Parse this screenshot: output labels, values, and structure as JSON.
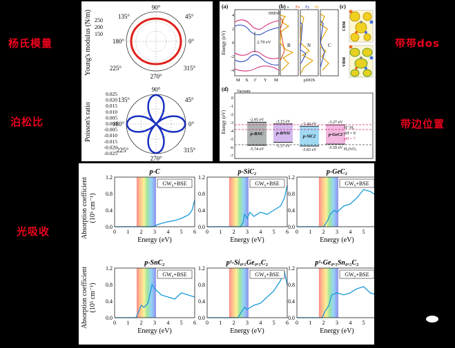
{
  "labels": {
    "young": "杨氏模量",
    "poisson": "泊松比",
    "bandgap": "带带dos",
    "bandedge": "带边位置",
    "absorption": "光吸收"
  },
  "polar": {
    "young": {
      "ylabel": "Young's modulus (N/m)",
      "ticks": [
        "250",
        "200",
        "150"
      ],
      "angles": [
        "90°",
        "45°",
        "0°",
        "315°",
        "270°",
        "225°",
        "180°",
        "135°"
      ]
    },
    "poisson": {
      "ylabel": "Poisson's ratio",
      "ticks": [
        "0.025",
        "0.020",
        "0.015",
        "0.010",
        "0.005",
        "0.000",
        "-0.005",
        "-0.010",
        "-0.015",
        "-0.020",
        "-0.025"
      ],
      "angles": [
        "90°",
        "45°",
        "0°",
        "315°",
        "270°",
        "225°",
        "180°",
        "135°"
      ]
    }
  },
  "band": {
    "panel_a": "(a)",
    "panel_b": "(b)",
    "panel_c": "(c)",
    "panel_d": "(d)",
    "ylabel": "Energy (eV)",
    "hse": "HSE06",
    "gap": "2.79 eV",
    "kpoints": [
      "M",
      "X",
      "Γ",
      "Y",
      "M"
    ],
    "ticks": [
      "4",
      "2",
      "0",
      "-2",
      "-4"
    ],
    "legend": [
      "s",
      "Px",
      "Py",
      "Pz"
    ],
    "pdos": "pDOS",
    "elements": [
      "B",
      "N",
      "C"
    ],
    "cbm": "CBM",
    "vbm": "VBM"
  },
  "edges": {
    "ylabel": "Energy (eV)",
    "vacuum": "Vacuum",
    "ticks": [
      "0",
      "-1",
      "-2",
      "-3",
      "-4",
      "-5",
      "-6",
      "-7"
    ],
    "materials": [
      {
        "name": "p-BNC",
        "cb": "-2.95 eV",
        "vb": "-5.74 eV"
      },
      {
        "name": "p-BNSi",
        "cb": "-3.15 eV",
        "vb": "-5.37 eV"
      },
      {
        "name": "p-SiC2",
        "cb": "-3.44 eV",
        "vb": "-5.83 eV"
      },
      {
        "name": "p-GeC2",
        "cb": "-3.27 eV",
        "vb": "-5.59 eV"
      }
    ],
    "h_label": "H⁺/H₂",
    "ph0": "pH = 0",
    "ph7": "pH = 7",
    "o_label": "H₂O/O₂"
  },
  "absorption": {
    "ylabel1": "Absorption coefficient",
    "ylabel2": "(10⁵ cm⁻¹)",
    "xlabel": "Energy (eV)",
    "legend": "GW₀+BSE",
    "yticks": [
      "1.2",
      "0.8",
      "0.4",
      "0.0"
    ],
    "xticks": [
      "0",
      "1",
      "2",
      "3",
      "4",
      "5",
      "6"
    ],
    "titles": [
      "p-C",
      "p-SiC₂",
      "p-GeC₂",
      "p-SnC₂",
      "p¹-Si₀.₅Ge₀.₅C₂",
      "p¹-Ge₀.₅Sn₀.₅C₂"
    ]
  },
  "chart_data": [
    {
      "type": "line",
      "title": "p-C",
      "xlabel": "Energy (eV)",
      "ylabel": "Absorption coefficient (10^5 cm^-1)",
      "xlim": [
        0,
        6
      ],
      "ylim": [
        0,
        1.2
      ],
      "x": [
        0,
        2.9,
        3.0,
        3.2,
        3.5,
        4.0,
        4.5,
        5.0,
        5.3,
        5.6,
        5.8,
        6.0
      ],
      "values": [
        0,
        0,
        0.02,
        0.05,
        0.08,
        0.12,
        0.15,
        0.2,
        0.25,
        0.3,
        0.4,
        0.65
      ]
    },
    {
      "type": "line",
      "title": "p-SiC2",
      "xlabel": "Energy (eV)",
      "ylabel": "Absorption coefficient (10^5 cm^-1)",
      "xlim": [
        0,
        6
      ],
      "ylim": [
        0,
        1.2
      ],
      "x": [
        0,
        2.5,
        2.7,
        2.8,
        3.0,
        3.2,
        3.5,
        4.0,
        4.5,
        5.0,
        5.5,
        5.8,
        6.0
      ],
      "values": [
        0,
        0,
        0.1,
        0.3,
        0.2,
        0.35,
        0.25,
        0.35,
        0.3,
        0.4,
        0.5,
        0.7,
        1.0
      ]
    },
    {
      "type": "line",
      "title": "p-GeC2",
      "xlabel": "Energy (eV)",
      "ylabel": "Absorption coefficient (10^5 cm^-1)",
      "xlim": [
        0,
        6
      ],
      "ylim": [
        0,
        1.2
      ],
      "x": [
        0,
        2.0,
        2.3,
        2.5,
        2.8,
        3.0,
        3.5,
        4.0,
        4.5,
        5.0,
        5.5,
        6.0
      ],
      "values": [
        0,
        0,
        0.15,
        0.3,
        0.4,
        0.35,
        0.5,
        0.55,
        0.7,
        0.9,
        0.85,
        0.75
      ]
    },
    {
      "type": "line",
      "title": "p-SnC2",
      "xlabel": "Energy (eV)",
      "ylabel": "Absorption coefficient (10^5 cm^-1)",
      "xlim": [
        0,
        6
      ],
      "ylim": [
        0,
        1.2
      ],
      "x": [
        0,
        1.6,
        1.8,
        2.0,
        2.2,
        2.5,
        2.8,
        3.0,
        3.5,
        4.0,
        4.5,
        5.0,
        5.5,
        6.0
      ],
      "values": [
        0,
        0,
        0.15,
        0.3,
        0.25,
        0.35,
        0.8,
        0.7,
        0.55,
        0.5,
        0.45,
        0.6,
        0.55,
        0.5
      ]
    },
    {
      "type": "line",
      "title": "p1-Si0.5Ge0.5C2",
      "xlabel": "Energy (eV)",
      "ylabel": "Absorption coefficient (10^5 cm^-1)",
      "xlim": [
        0,
        6
      ],
      "ylim": [
        0,
        1.2
      ],
      "x": [
        0,
        2.3,
        2.5,
        2.8,
        3.0,
        3.5,
        4.0,
        4.5,
        5.0,
        5.5,
        5.8,
        6.0
      ],
      "values": [
        0,
        0,
        0.1,
        0.25,
        0.2,
        0.3,
        0.35,
        0.5,
        0.65,
        0.9,
        1.1,
        0.8
      ]
    },
    {
      "type": "line",
      "title": "p1-Ge0.5Sn0.5C2",
      "xlabel": "Energy (eV)",
      "ylabel": "Absorption coefficient (10^5 cm^-1)",
      "xlim": [
        0,
        6
      ],
      "ylim": [
        0,
        1.2
      ],
      "x": [
        0,
        1.9,
        2.1,
        2.4,
        2.6,
        3.0,
        3.5,
        4.0,
        4.5,
        5.0,
        5.5,
        6.0
      ],
      "values": [
        0,
        0,
        0.15,
        0.3,
        0.55,
        0.6,
        0.55,
        0.6,
        0.7,
        0.75,
        0.6,
        0.55
      ]
    }
  ]
}
